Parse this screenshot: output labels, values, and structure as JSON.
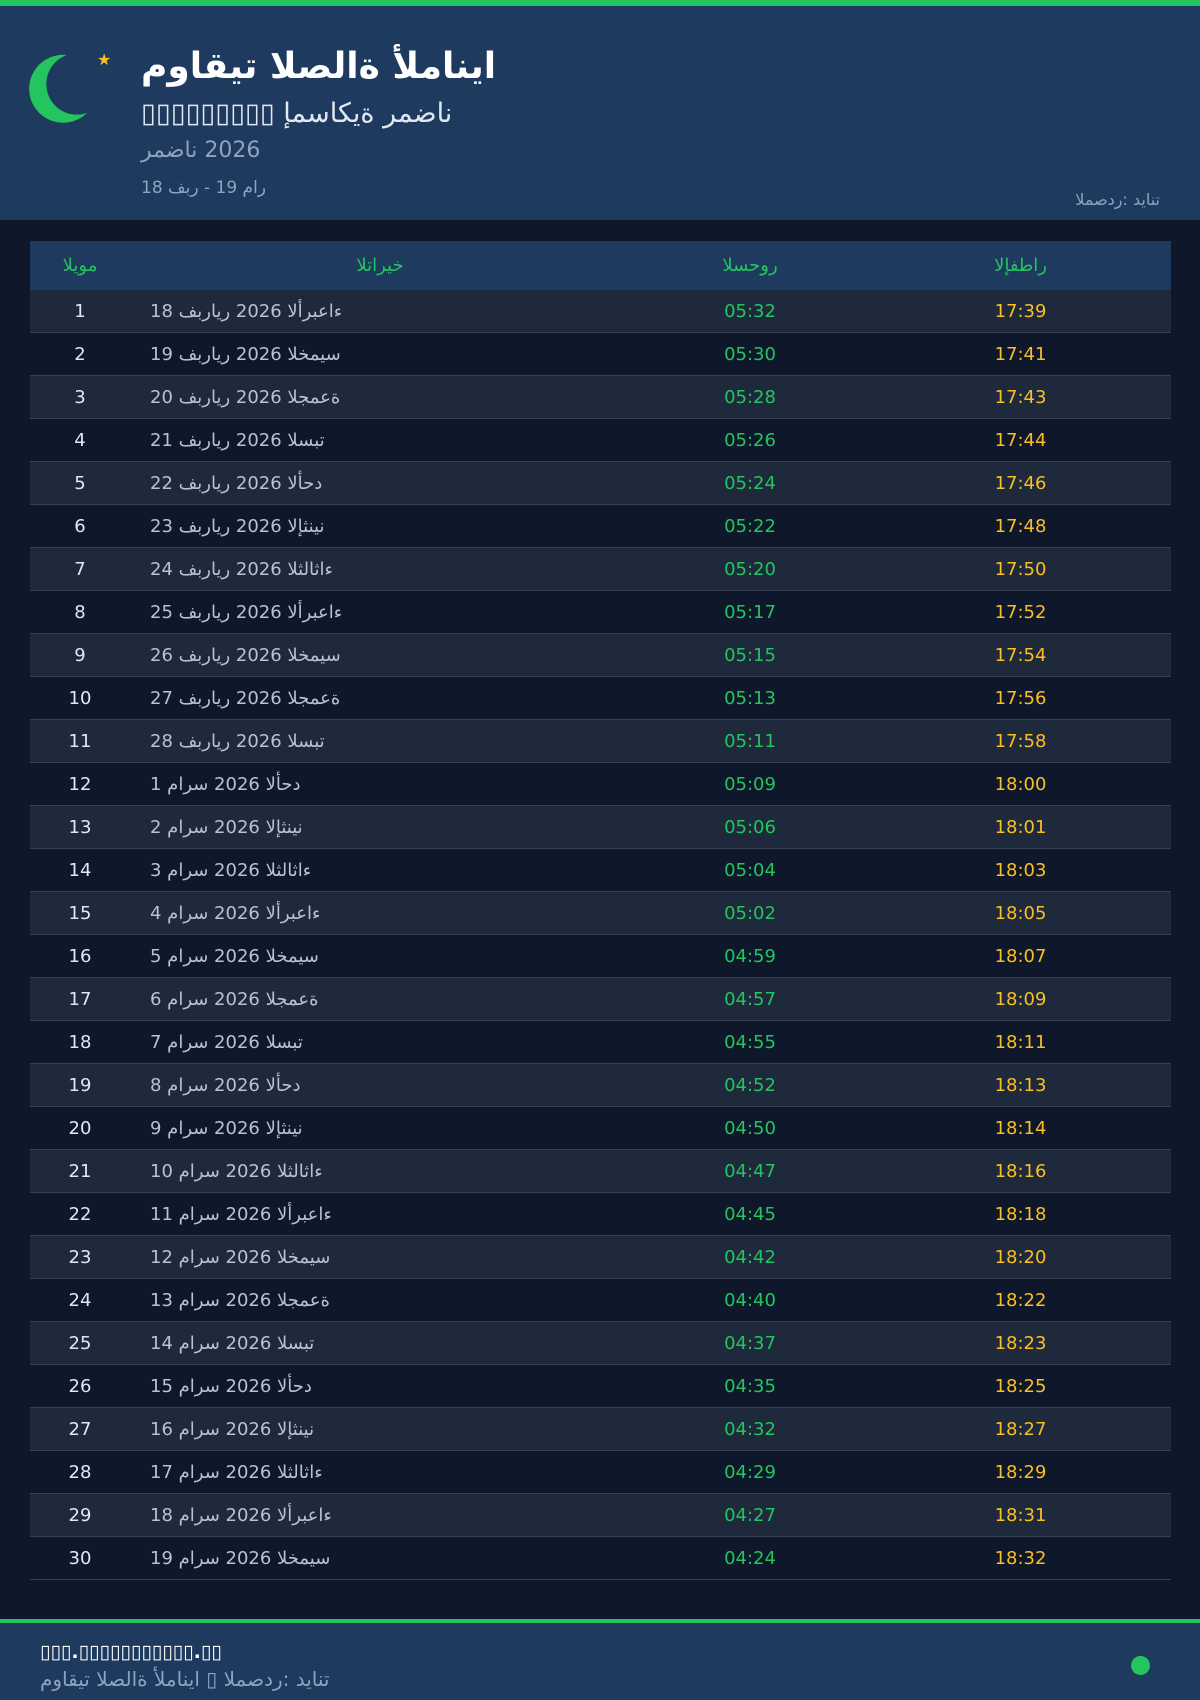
{
  "header": {
    "title": "مواقيت الصلاة ألمانيا",
    "subtitle": "▯▯▯▯▯▯▯▯▯ إمساكية رمضان",
    "season": "رمضان 2026",
    "date_range": "18 فبر - 19 مار",
    "source": "المصدر: ديانت",
    "icons": [
      "crescent-moon-icon",
      "star-icon"
    ]
  },
  "colors": {
    "accent": "#22c55e",
    "iftar": "#fbbf24",
    "header_bg": "#1e3a5f",
    "page_bg": "#0f172a"
  },
  "table": {
    "columns": [
      "اليوم",
      "التاريخ",
      "السحور",
      "الإفطار"
    ],
    "rows": [
      {
        "day": "1",
        "date": "18 فبراير 2026 الأربعاء",
        "suhoor": "05:32",
        "iftar": "17:39"
      },
      {
        "day": "2",
        "date": "19 فبراير 2026 الخميس",
        "suhoor": "05:30",
        "iftar": "17:41"
      },
      {
        "day": "3",
        "date": "20 فبراير 2026 الجمعة",
        "suhoor": "05:28",
        "iftar": "17:43"
      },
      {
        "day": "4",
        "date": "21 فبراير 2026 السبت",
        "suhoor": "05:26",
        "iftar": "17:44"
      },
      {
        "day": "5",
        "date": "22 فبراير 2026 الأحد",
        "suhoor": "05:24",
        "iftar": "17:46"
      },
      {
        "day": "6",
        "date": "23 فبراير 2026 الإثنين",
        "suhoor": "05:22",
        "iftar": "17:48"
      },
      {
        "day": "7",
        "date": "24 فبراير 2026 الثلاثاء",
        "suhoor": "05:20",
        "iftar": "17:50"
      },
      {
        "day": "8",
        "date": "25 فبراير 2026 الأربعاء",
        "suhoor": "05:17",
        "iftar": "17:52"
      },
      {
        "day": "9",
        "date": "26 فبراير 2026 الخميس",
        "suhoor": "05:15",
        "iftar": "17:54"
      },
      {
        "day": "10",
        "date": "27 فبراير 2026 الجمعة",
        "suhoor": "05:13",
        "iftar": "17:56"
      },
      {
        "day": "11",
        "date": "28 فبراير 2026 السبت",
        "suhoor": "05:11",
        "iftar": "17:58"
      },
      {
        "day": "12",
        "date": "1 مارس 2026 الأحد",
        "suhoor": "05:09",
        "iftar": "18:00"
      },
      {
        "day": "13",
        "date": "2 مارس 2026 الإثنين",
        "suhoor": "05:06",
        "iftar": "18:01"
      },
      {
        "day": "14",
        "date": "3 مارس 2026 الثلاثاء",
        "suhoor": "05:04",
        "iftar": "18:03"
      },
      {
        "day": "15",
        "date": "4 مارس 2026 الأربعاء",
        "suhoor": "05:02",
        "iftar": "18:05"
      },
      {
        "day": "16",
        "date": "5 مارس 2026 الخميس",
        "suhoor": "04:59",
        "iftar": "18:07"
      },
      {
        "day": "17",
        "date": "6 مارس 2026 الجمعة",
        "suhoor": "04:57",
        "iftar": "18:09"
      },
      {
        "day": "18",
        "date": "7 مارس 2026 السبت",
        "suhoor": "04:55",
        "iftar": "18:11"
      },
      {
        "day": "19",
        "date": "8 مارس 2026 الأحد",
        "suhoor": "04:52",
        "iftar": "18:13"
      },
      {
        "day": "20",
        "date": "9 مارس 2026 الإثنين",
        "suhoor": "04:50",
        "iftar": "18:14"
      },
      {
        "day": "21",
        "date": "10 مارس 2026 الثلاثاء",
        "suhoor": "04:47",
        "iftar": "18:16"
      },
      {
        "day": "22",
        "date": "11 مارس 2026 الأربعاء",
        "suhoor": "04:45",
        "iftar": "18:18"
      },
      {
        "day": "23",
        "date": "12 مارس 2026 الخميس",
        "suhoor": "04:42",
        "iftar": "18:20"
      },
      {
        "day": "24",
        "date": "13 مارس 2026 الجمعة",
        "suhoor": "04:40",
        "iftar": "18:22"
      },
      {
        "day": "25",
        "date": "14 مارس 2026 السبت",
        "suhoor": "04:37",
        "iftar": "18:23"
      },
      {
        "day": "26",
        "date": "15 مارس 2026 الأحد",
        "suhoor": "04:35",
        "iftar": "18:25"
      },
      {
        "day": "27",
        "date": "16 مارس 2026 الإثنين",
        "suhoor": "04:32",
        "iftar": "18:27"
      },
      {
        "day": "28",
        "date": "17 مارس 2026 الثلاثاء",
        "suhoor": "04:29",
        "iftar": "18:29"
      },
      {
        "day": "29",
        "date": "18 مارس 2026 الأربعاء",
        "suhoor": "04:27",
        "iftar": "18:31"
      },
      {
        "day": "30",
        "date": "19 مارس 2026 الخميس",
        "suhoor": "04:24",
        "iftar": "18:32"
      }
    ]
  },
  "footer": {
    "site": "▯▯▯.▯▯▯▯▯▯▯▯▯▯▯.▯▯",
    "source_line": "مواقيت الصلاة ألمانيا ▯ المصدر: ديانت",
    "status_icon": "status-dot-icon"
  }
}
